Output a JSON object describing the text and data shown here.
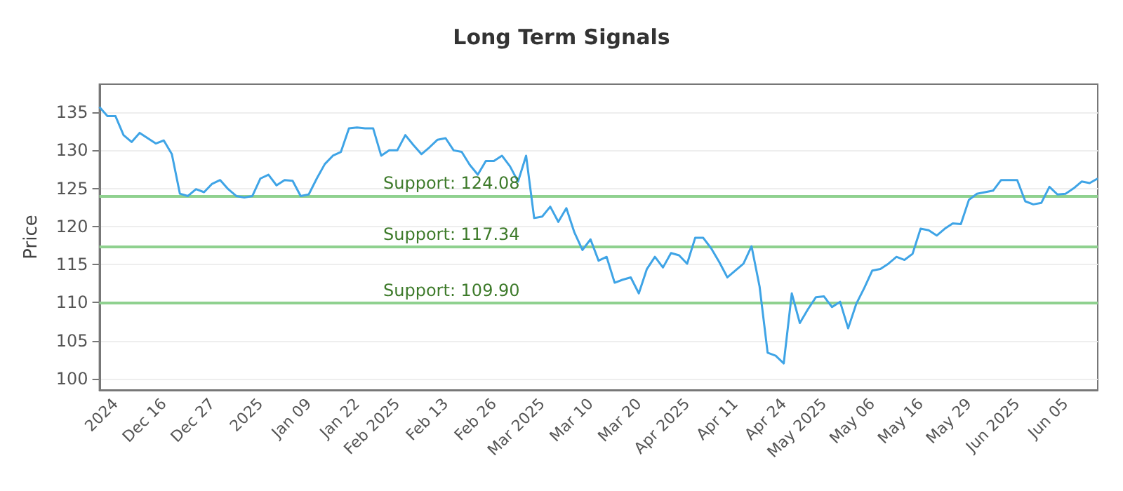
{
  "chart_data": {
    "type": "line",
    "title": "Long Term Signals",
    "ylabel": "Price",
    "categories": [
      null,
      null,
      "2024",
      null,
      null,
      null,
      null,
      null,
      "Dec 16",
      null,
      null,
      null,
      null,
      null,
      "Dec 27",
      null,
      null,
      null,
      null,
      null,
      "2025",
      null,
      null,
      null,
      null,
      null,
      "Jan 09",
      null,
      null,
      null,
      null,
      null,
      "Jan 22",
      null,
      null,
      null,
      null,
      "Feb 2025",
      null,
      null,
      null,
      null,
      null,
      "Feb 13",
      null,
      null,
      null,
      null,
      null,
      "Feb 26",
      null,
      null,
      null,
      null,
      null,
      "Mar 2025",
      null,
      null,
      null,
      null,
      null,
      "Mar 10",
      null,
      null,
      null,
      null,
      null,
      "Mar 20",
      null,
      null,
      null,
      null,
      null,
      "Apr 2025",
      null,
      null,
      null,
      null,
      null,
      "Apr 11",
      null,
      null,
      null,
      null,
      null,
      "Apr 24",
      null,
      null,
      null,
      null,
      "May 2025",
      null,
      null,
      null,
      null,
      null,
      "May 06",
      null,
      null,
      null,
      null,
      null,
      "May 16",
      null,
      null,
      null,
      null,
      null,
      "May 29",
      null,
      null,
      null,
      null,
      null,
      "Jun 2025",
      null,
      null,
      null,
      null,
      null,
      "Jun 05",
      null,
      null,
      null,
      null
    ],
    "series": [
      {
        "color": "#3fa4e6",
        "values": [
          135.7,
          134.5,
          134.5,
          132.0,
          131.1,
          132.3,
          131.6,
          130.9,
          131.3,
          129.5,
          124.3,
          124.0,
          124.9,
          124.5,
          125.6,
          126.1,
          124.9,
          124.0,
          123.8,
          124.0,
          126.3,
          126.8,
          125.4,
          126.1,
          126.0,
          124.0,
          124.2,
          126.3,
          128.2,
          129.3,
          129.8,
          132.9,
          133.0,
          132.9,
          132.9,
          129.3,
          130.0,
          130.0,
          132.0,
          130.7,
          129.5,
          130.4,
          131.4,
          131.6,
          130.0,
          129.8,
          128.1,
          126.8,
          128.6,
          128.6,
          129.3,
          127.9,
          125.9,
          129.3,
          121.1,
          121.3,
          122.6,
          120.6,
          122.4,
          119.2,
          116.9,
          118.3,
          115.5,
          116.0,
          112.6,
          113.0,
          113.3,
          111.2,
          114.4,
          116.0,
          114.6,
          116.5,
          116.2,
          115.1,
          118.5,
          118.5,
          117.1,
          115.3,
          113.3,
          114.2,
          115.1,
          117.4,
          112.1,
          103.4,
          103.0,
          102.0,
          111.2,
          107.3,
          109.1,
          110.7,
          110.8,
          109.4,
          110.1,
          106.6,
          109.8,
          111.9,
          114.2,
          114.4,
          115.1,
          116.0,
          115.6,
          116.4,
          119.7,
          119.5,
          118.8,
          119.7,
          120.4,
          120.3,
          123.5,
          124.3,
          124.5,
          124.7,
          126.1,
          126.1,
          126.1,
          123.3,
          122.9,
          123.1,
          125.2,
          124.2,
          124.3,
          125.0,
          125.9,
          125.7,
          126.3
        ]
      }
    ],
    "ylim": [
      98.5,
      138.7
    ],
    "yticks": [
      100,
      105,
      110,
      115,
      120,
      125,
      130,
      135
    ],
    "ref_lines": [
      {
        "axis": "y",
        "value": 124.08,
        "label": "Support: 124.08",
        "color": "#8fd18f"
      },
      {
        "axis": "y",
        "value": 117.34,
        "label": "Support: 117.34",
        "color": "#8fd18f"
      },
      {
        "axis": "y",
        "value": 109.9,
        "label": "Support: 109.90",
        "color": "#8fd18f"
      }
    ],
    "grid": "y",
    "marker": "none",
    "line_style": "solid"
  }
}
